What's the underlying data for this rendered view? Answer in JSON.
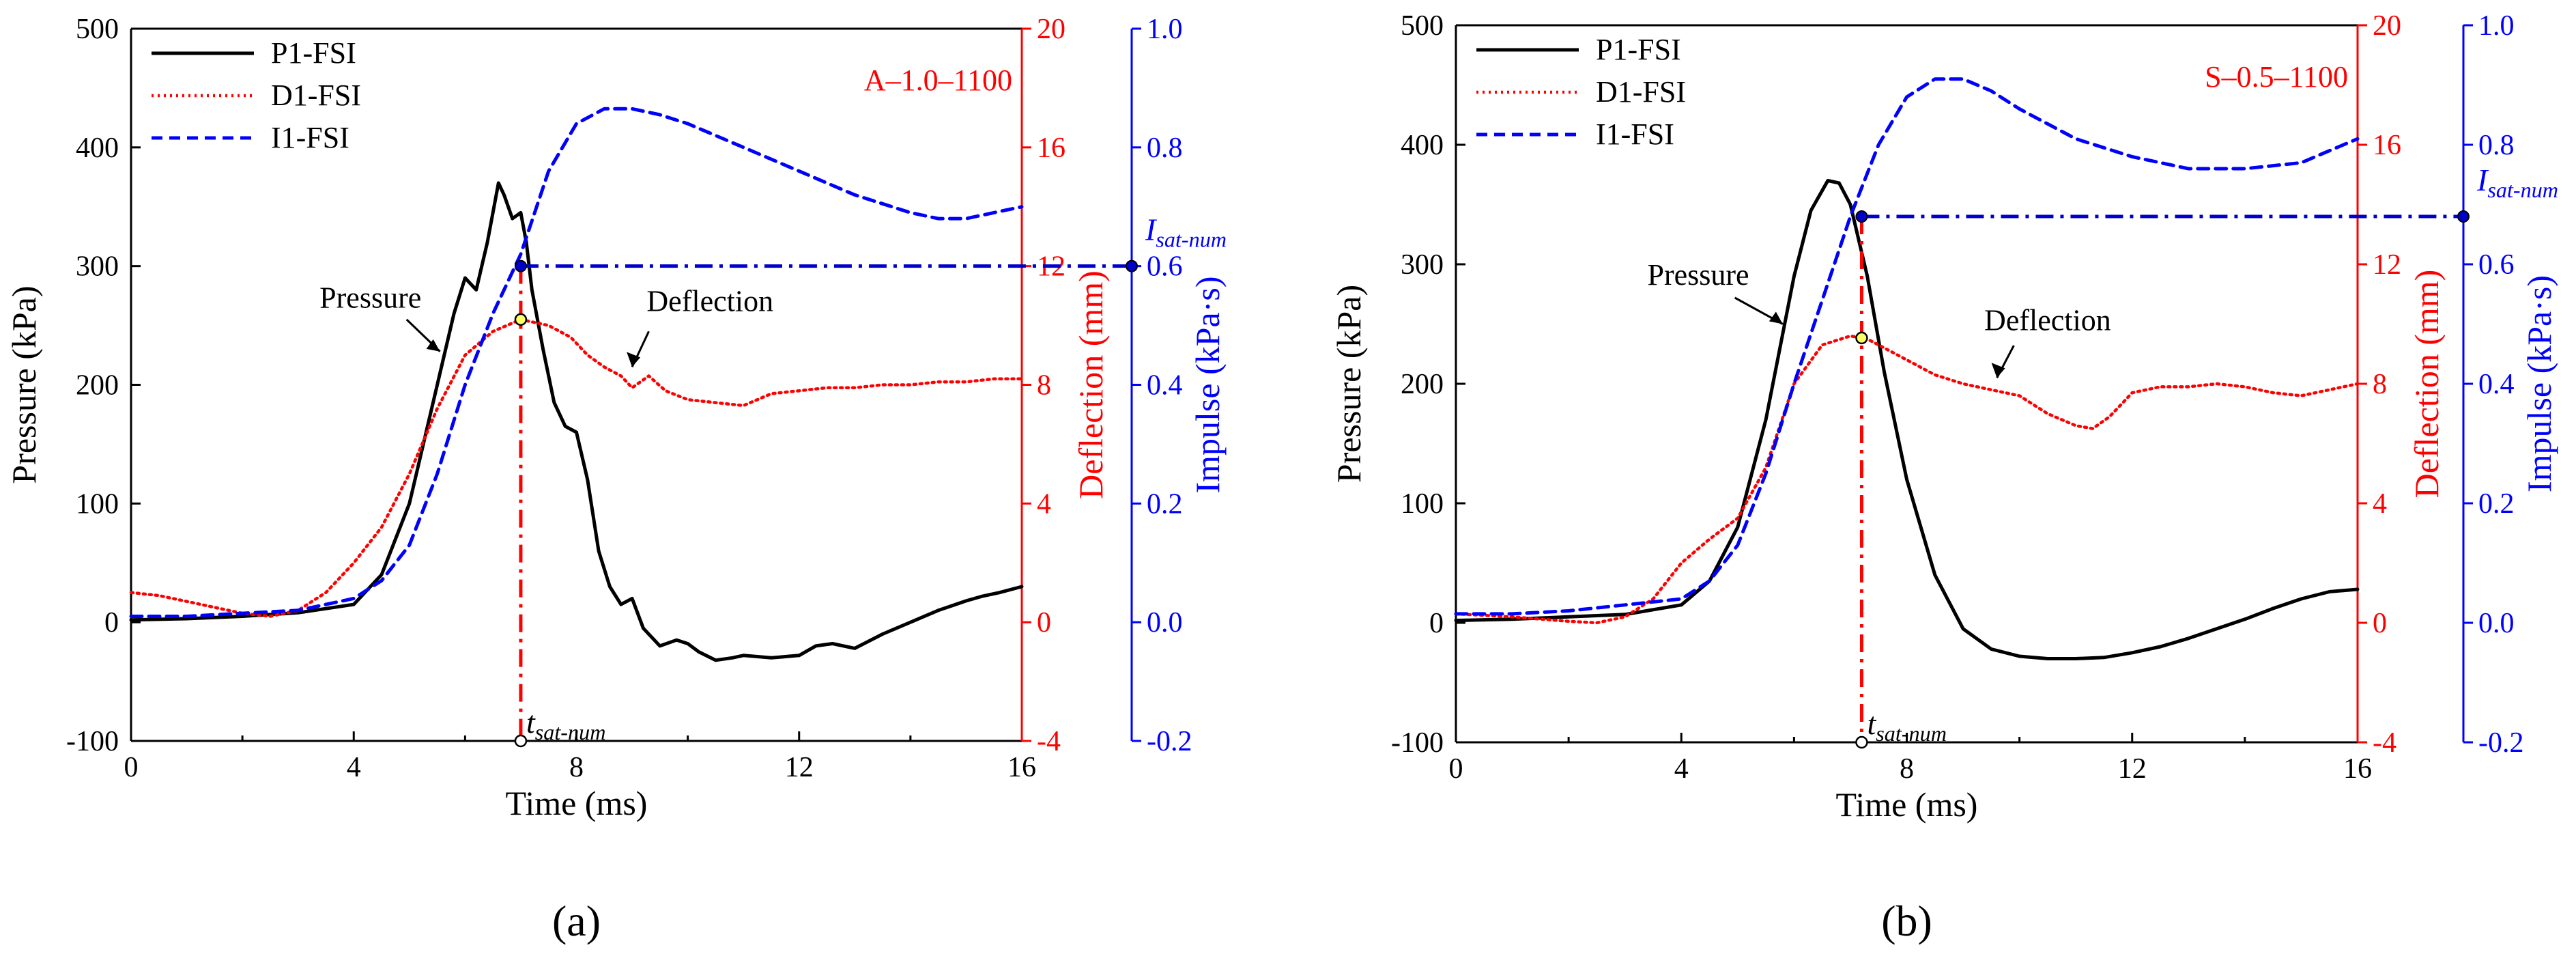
{
  "chart_data": [
    {
      "type": "line",
      "panel_label": "(a)",
      "annotation_code": "A–1.0–1100",
      "xlabel": "Time (ms)",
      "ylabel_left": "Pressure (kPa)",
      "ylabel_right1": "Deflection (mm)",
      "ylabel_right2": "Impulse (kPa·s)",
      "xlim": [
        0,
        16
      ],
      "xticks": [
        "0",
        "4",
        "8",
        "12",
        "16"
      ],
      "ylim_left": [
        -100,
        500
      ],
      "yticks_left": [
        "-100",
        "0",
        "100",
        "200",
        "300",
        "400",
        "500"
      ],
      "ylim_right1": [
        -4,
        20
      ],
      "yticks_right1": [
        "-4",
        "0",
        "4",
        "8",
        "12",
        "16",
        "20"
      ],
      "ylim_right2": [
        -0.2,
        1.0
      ],
      "yticks_right2": [
        "-0.2",
        "0.0",
        "0.2",
        "0.4",
        "0.6",
        "0.8",
        "1.0"
      ],
      "legend": [
        "P1-FSI",
        "D1-FSI",
        "I1-FSI"
      ],
      "annotations": {
        "pressure": "Pressure",
        "deflection": "Deflection",
        "i_sat": "I",
        "i_sat_sub": "sat-num",
        "t_sat": "t",
        "t_sat_sub": "sat-num"
      },
      "t_sat": 7.0,
      "i_sat": 0.6,
      "series": [
        {
          "name": "P1-FSI",
          "axis": "left",
          "color": "#000000",
          "x": [
            0,
            1,
            2,
            3,
            4,
            4.5,
            5,
            5.5,
            5.8,
            6,
            6.2,
            6.4,
            6.6,
            6.7,
            6.85,
            7,
            7.1,
            7.2,
            7.4,
            7.6,
            7.8,
            8,
            8.2,
            8.4,
            8.6,
            8.8,
            9,
            9.2,
            9.5,
            9.8,
            10,
            10.2,
            10.5,
            10.8,
            11,
            11.5,
            12,
            12.3,
            12.6,
            13,
            13.5,
            14,
            14.5,
            15,
            15.3,
            15.6,
            16
          ],
          "y": [
            2,
            3,
            5,
            8,
            15,
            40,
            100,
            200,
            260,
            290,
            280,
            320,
            370,
            360,
            340,
            345,
            320,
            280,
            230,
            185,
            165,
            160,
            120,
            60,
            30,
            15,
            20,
            -5,
            -20,
            -15,
            -18,
            -25,
            -32,
            -30,
            -28,
            -30,
            -28,
            -20,
            -18,
            -22,
            -10,
            0,
            10,
            18,
            22,
            25,
            30
          ]
        },
        {
          "name": "D1-FSI",
          "axis": "right1",
          "color": "#ff0000",
          "x": [
            0,
            0.5,
            1,
            1.5,
            2,
            2.5,
            3,
            3.5,
            4,
            4.5,
            5,
            5.5,
            6,
            6.5,
            7,
            7.5,
            7.9,
            8.2,
            8.5,
            8.8,
            9,
            9.3,
            9.6,
            10,
            10.5,
            11,
            11.5,
            12,
            12.5,
            13,
            13.5,
            14,
            14.5,
            15,
            15.5,
            16
          ],
          "y": [
            1.0,
            0.9,
            0.7,
            0.5,
            0.3,
            0.2,
            0.4,
            1.0,
            2.0,
            3.2,
            5.0,
            7.2,
            9.0,
            9.8,
            10.2,
            10.0,
            9.6,
            9.0,
            8.6,
            8.3,
            7.9,
            8.3,
            7.8,
            7.5,
            7.4,
            7.3,
            7.7,
            7.8,
            7.9,
            7.9,
            8.0,
            8.0,
            8.1,
            8.1,
            8.2,
            8.2
          ]
        },
        {
          "name": "I1-FSI",
          "axis": "right2",
          "color": "#0000ff",
          "x": [
            0,
            1,
            2,
            3,
            4,
            4.5,
            5,
            5.5,
            6,
            6.5,
            7,
            7.5,
            8,
            8.5,
            9,
            9.5,
            10,
            11,
            12,
            13,
            14,
            14.5,
            15,
            15.5,
            16
          ],
          "y": [
            0.01,
            0.01,
            0.015,
            0.02,
            0.04,
            0.07,
            0.13,
            0.25,
            0.4,
            0.52,
            0.62,
            0.76,
            0.84,
            0.865,
            0.865,
            0.855,
            0.84,
            0.8,
            0.76,
            0.72,
            0.69,
            0.68,
            0.68,
            0.69,
            0.7
          ]
        }
      ]
    },
    {
      "type": "line",
      "panel_label": "(b)",
      "annotation_code": "S–0.5–1100",
      "xlabel": "Time (ms)",
      "ylabel_left": "Pressure (kPa)",
      "ylabel_right1": "Deflection (mm)",
      "ylabel_right2": "Impulse (kPa·s)",
      "xlim": [
        0,
        16
      ],
      "xticks": [
        "0",
        "4",
        "8",
        "12",
        "16"
      ],
      "ylim_left": [
        -100,
        500
      ],
      "yticks_left": [
        "-100",
        "0",
        "100",
        "200",
        "300",
        "400",
        "500"
      ],
      "ylim_right1": [
        -4,
        20
      ],
      "yticks_right1": [
        "-4",
        "0",
        "4",
        "8",
        "12",
        "16",
        "20"
      ],
      "ylim_right2": [
        -0.2,
        1.0
      ],
      "yticks_right2": [
        "-0.2",
        "0.0",
        "0.2",
        "0.4",
        "0.6",
        "0.8",
        "1.0"
      ],
      "legend": [
        "P1-FSI",
        "D1-FSI",
        "I1-FSI"
      ],
      "annotations": {
        "pressure": "Pressure",
        "deflection": "Deflection",
        "i_sat": "I",
        "i_sat_sub": "sat-num",
        "t_sat": "t",
        "t_sat_sub": "sat-num"
      },
      "t_sat": 7.2,
      "i_sat": 0.68,
      "series": [
        {
          "name": "P1-FSI",
          "axis": "left",
          "color": "#000000",
          "x": [
            0,
            1,
            2,
            3,
            4,
            4.5,
            5,
            5.5,
            6,
            6.3,
            6.6,
            6.8,
            7,
            7.3,
            7.6,
            8,
            8.5,
            9,
            9.5,
            10,
            10.5,
            11,
            11.5,
            12,
            12.5,
            13,
            13.5,
            14,
            14.5,
            15,
            15.5,
            16
          ],
          "y": [
            2,
            3,
            5,
            7,
            15,
            35,
            80,
            170,
            290,
            345,
            370,
            368,
            350,
            290,
            210,
            120,
            40,
            -5,
            -22,
            -28,
            -30,
            -30,
            -29,
            -25,
            -20,
            -13,
            -5,
            3,
            12,
            20,
            26,
            28
          ]
        },
        {
          "name": "D1-FSI",
          "axis": "right1",
          "color": "#ff0000",
          "x": [
            0,
            1,
            2,
            2.5,
            3,
            3.5,
            4,
            4.5,
            5,
            5.5,
            6,
            6.5,
            7,
            7.3,
            7.6,
            8,
            8.5,
            9,
            9.5,
            10,
            10.5,
            11,
            11.3,
            11.6,
            12,
            12.5,
            13,
            13.5,
            14,
            14.5,
            15,
            15.5,
            16
          ],
          "y": [
            0.3,
            0.2,
            0.05,
            0.0,
            0.2,
            0.8,
            2.0,
            2.8,
            3.5,
            5.2,
            8.0,
            9.3,
            9.6,
            9.5,
            9.2,
            8.8,
            8.3,
            8.0,
            7.8,
            7.6,
            7.0,
            6.6,
            6.5,
            6.9,
            7.7,
            7.9,
            7.9,
            8.0,
            7.9,
            7.7,
            7.6,
            7.8,
            8.0
          ]
        },
        {
          "name": "I1-FSI",
          "axis": "right2",
          "color": "#0000ff",
          "x": [
            0,
            1,
            2,
            3,
            4,
            4.5,
            5,
            5.5,
            6,
            6.5,
            7,
            7.5,
            8,
            8.5,
            9,
            9.5,
            10,
            11,
            12,
            13,
            14,
            15,
            15.5,
            16
          ],
          "y": [
            0.015,
            0.015,
            0.02,
            0.03,
            0.04,
            0.07,
            0.13,
            0.25,
            0.4,
            0.54,
            0.68,
            0.8,
            0.88,
            0.91,
            0.91,
            0.89,
            0.86,
            0.81,
            0.78,
            0.76,
            0.76,
            0.77,
            0.79,
            0.81
          ]
        }
      ]
    }
  ]
}
